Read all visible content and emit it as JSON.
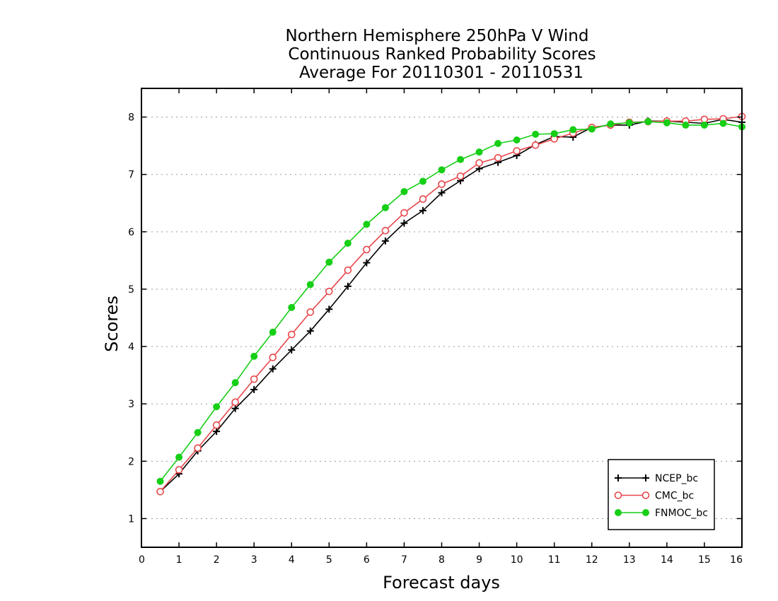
{
  "chart_data": {
    "type": "line",
    "title": [
      "Northern Hemisphere 250hPa V Wind",
      "Continuous Ranked Probability Scores",
      "Average For 20110301 - 20110531"
    ],
    "xlabel": "Forecast days",
    "ylabel": "Scores",
    "xlim": [
      0,
      16
    ],
    "ylim": [
      0.5,
      8.5
    ],
    "xticks": [
      0,
      1,
      2,
      3,
      4,
      5,
      6,
      7,
      8,
      9,
      10,
      11,
      12,
      13,
      14,
      15,
      16
    ],
    "yticks": [
      1,
      2,
      3,
      4,
      5,
      6,
      7,
      8
    ],
    "grid": "horizontal dotted",
    "legend_position": "bottom-right",
    "x": [
      0.5,
      1,
      1.5,
      2,
      2.5,
      3,
      3.5,
      4,
      4.5,
      5,
      5.5,
      6,
      6.5,
      7,
      7.5,
      8,
      8.5,
      9,
      9.5,
      10,
      10.5,
      11,
      11.5,
      12,
      12.5,
      13,
      13.5,
      14,
      14.5,
      15,
      15.5,
      16
    ],
    "series": [
      {
        "name": "NCEP_bc",
        "color": "#000000",
        "marker": "plus",
        "values": [
          1.47,
          1.78,
          2.18,
          2.52,
          2.92,
          3.25,
          3.61,
          3.94,
          4.27,
          4.65,
          5.05,
          5.46,
          5.84,
          6.15,
          6.37,
          6.68,
          6.89,
          7.1,
          7.21,
          7.33,
          7.52,
          7.66,
          7.65,
          7.82,
          7.86,
          7.86,
          7.93,
          7.93,
          7.91,
          7.89,
          7.96,
          7.91
        ]
      },
      {
        "name": "CMC_bc",
        "color": "#e8474b",
        "marker": "open-circle",
        "values": [
          1.47,
          1.85,
          2.23,
          2.63,
          3.03,
          3.43,
          3.81,
          4.21,
          4.6,
          4.96,
          5.33,
          5.69,
          6.02,
          6.33,
          6.57,
          6.83,
          6.97,
          7.2,
          7.29,
          7.41,
          7.51,
          7.62,
          7.72,
          7.82,
          7.86,
          7.91,
          7.92,
          7.93,
          7.93,
          7.96,
          7.97,
          8.01
        ]
      },
      {
        "name": "FNMOC_bc",
        "color": "#16cf16",
        "marker": "filled-circle",
        "values": [
          1.65,
          2.07,
          2.5,
          2.95,
          3.37,
          3.83,
          4.25,
          4.68,
          5.08,
          5.47,
          5.8,
          6.13,
          6.42,
          6.7,
          6.88,
          7.08,
          7.26,
          7.39,
          7.54,
          7.6,
          7.7,
          7.71,
          7.78,
          7.79,
          7.88,
          7.9,
          7.92,
          7.9,
          7.86,
          7.86,
          7.89,
          7.83
        ]
      }
    ]
  }
}
